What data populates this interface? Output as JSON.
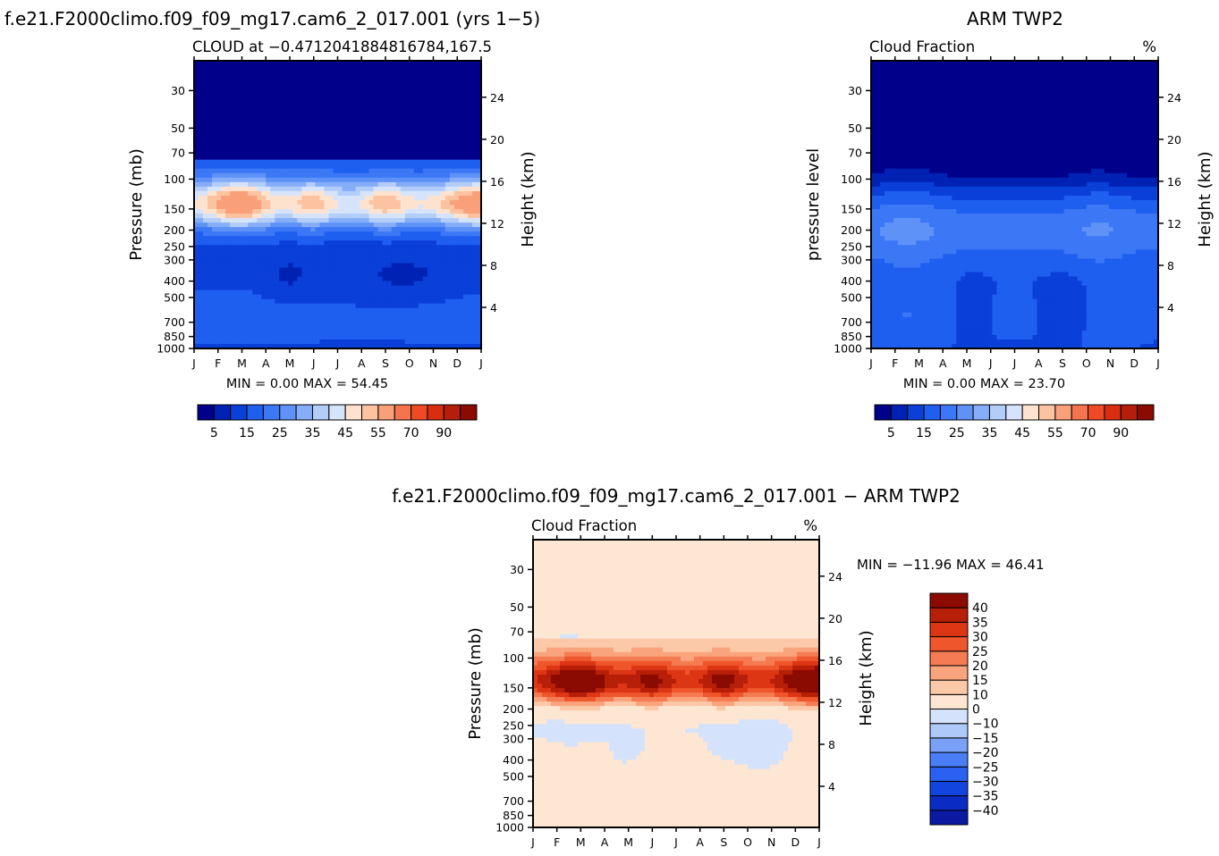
{
  "colors": {
    "seq": [
      "#00008b",
      "#0022b4",
      "#0a3fd8",
      "#1f5ff0",
      "#3c78f5",
      "#5e92f7",
      "#86aef8",
      "#b3cdf9",
      "#d6e4fb",
      "#fde3cf",
      "#fcc3a1",
      "#f9a07a",
      "#f5744e",
      "#ee4a26",
      "#d92d10",
      "#b51e0a",
      "#8b0a02"
    ],
    "diff": [
      "#0a1aa3",
      "#0b2cc4",
      "#1244e0",
      "#2a61f2",
      "#4a7ef6",
      "#7aa1f7",
      "#adc8f9",
      "#d4e3fb",
      "#fde6d2",
      "#fbc9a8",
      "#f9a47c",
      "#f57b53",
      "#ef562b",
      "#dd3614",
      "#b81f09",
      "#8b0a02"
    ]
  },
  "chart_data": [
    {
      "id": "model",
      "type": "heatmap",
      "title": "f.e21.F2000climo.f09_f09_mg17.cam6_2_017.001 (yrs 1−5)",
      "subtitle_left": "CLOUD at −0.4712041884816784,167.5",
      "subtitle_right": "",
      "ylabel": "Pressure (mb)",
      "y2label": "Height (km)",
      "stats": "MIN =    0.00  MAX =   54.45",
      "months": [
        "J",
        "F",
        "M",
        "A",
        "M",
        "J",
        "J",
        "A",
        "S",
        "O",
        "N",
        "D",
        "J"
      ],
      "pressure_ticks": [
        30,
        50,
        70,
        100,
        150,
        200,
        250,
        300,
        400,
        500,
        700,
        850,
        1000
      ],
      "height_ticks": [
        24,
        20,
        16,
        12,
        8,
        4
      ],
      "ylim": [
        1000,
        20
      ],
      "colorbar_ticks": [
        "5",
        "15",
        "25",
        "35",
        "45",
        "55",
        "70",
        "90"
      ],
      "levels": [
        2,
        5,
        10,
        15,
        20,
        25,
        30,
        35,
        40,
        45,
        50,
        55,
        60,
        70,
        80,
        90
      ],
      "levels_note": "contour levels in percent cloud fraction"
    },
    {
      "id": "obs",
      "type": "heatmap",
      "title": "ARM TWP2",
      "subtitle_left": "Cloud Fraction",
      "subtitle_right": "%",
      "ylabel": "pressure level",
      "y2label": "Height (km)",
      "stats": "MIN =    0.00  MAX =   23.70",
      "months": [
        "J",
        "F",
        "M",
        "A",
        "M",
        "J",
        "J",
        "A",
        "S",
        "O",
        "N",
        "D",
        "J"
      ],
      "pressure_ticks": [
        30,
        50,
        70,
        100,
        150,
        200,
        250,
        300,
        400,
        500,
        700,
        850,
        1000
      ],
      "height_ticks": [
        24,
        20,
        16,
        12,
        8,
        4
      ],
      "ylim": [
        1000,
        20
      ],
      "colorbar_ticks": [
        "5",
        "15",
        "25",
        "35",
        "45",
        "55",
        "70",
        "90"
      ],
      "levels": [
        2,
        5,
        10,
        15,
        20,
        25,
        30,
        35,
        40,
        45,
        50,
        55,
        60,
        70,
        80,
        90
      ]
    },
    {
      "id": "diff",
      "type": "heatmap",
      "title": "f.e21.F2000climo.f09_f09_mg17.cam6_2_017.001 − ARM TWP2",
      "subtitle_left": "Cloud Fraction",
      "subtitle_right": "%",
      "ylabel": "Pressure (mb)",
      "y2label": "Height (km)",
      "stats": "MIN = −11.96  MAX =   46.41",
      "months": [
        "J",
        "F",
        "M",
        "A",
        "M",
        "J",
        "J",
        "A",
        "S",
        "O",
        "N",
        "D",
        "J"
      ],
      "pressure_ticks": [
        30,
        50,
        70,
        100,
        150,
        200,
        250,
        300,
        400,
        500,
        700,
        850,
        1000
      ],
      "height_ticks": [
        24,
        20,
        16,
        12,
        8,
        4
      ],
      "ylim": [
        1000,
        20
      ],
      "colorbar_ticks": [
        "40",
        "35",
        "30",
        "25",
        "20",
        "15",
        "10",
        "0",
        "−10",
        "−15",
        "−20",
        "−25",
        "−30",
        "−35",
        "−40"
      ],
      "levels": [
        -40,
        -35,
        -30,
        -25,
        -20,
        -15,
        -10,
        0,
        10,
        15,
        20,
        25,
        30,
        35,
        40
      ]
    }
  ]
}
